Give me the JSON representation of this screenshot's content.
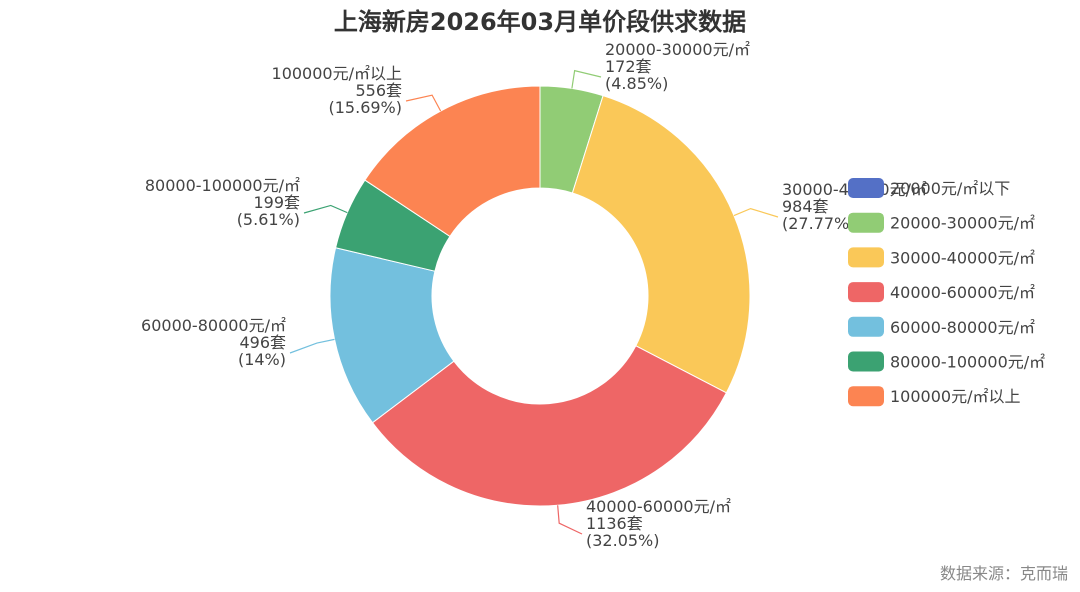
{
  "chart_data": {
    "type": "pie",
    "variant": "donut",
    "title": "上海新房2026年03月单价段供求数据",
    "source": "数据来源：克而瑞",
    "legend_position": "right",
    "unit": "套",
    "slices": [
      {
        "name": "20000元/㎡以下",
        "value": 0,
        "pct": "",
        "color": "#5470c6",
        "label_lines": []
      },
      {
        "name": "20000-30000元/㎡",
        "value": 172,
        "pct": "(4.85%)",
        "color": "#91cc75",
        "label_lines": [
          "20000-30000元/㎡",
          "172套",
          "(4.85%)"
        ]
      },
      {
        "name": "30000-40000元/㎡",
        "value": 984,
        "pct": "(27.77%)",
        "color": "#fac858",
        "label_lines": [
          "30000-40000元/㎡",
          "984套",
          "(27.77%)"
        ]
      },
      {
        "name": "40000-60000元/㎡",
        "value": 1136,
        "pct": "(32.05%)",
        "color": "#ee6666",
        "label_lines": [
          "40000-60000元/㎡",
          "1136套",
          "(32.05%)"
        ]
      },
      {
        "name": "60000-80000元/㎡",
        "value": 496,
        "pct": "(14%)",
        "color": "#73c0de",
        "label_lines": [
          "60000-80000元/㎡",
          "496套",
          "(14%)"
        ]
      },
      {
        "name": "80000-100000元/㎡",
        "value": 199,
        "pct": "(5.61%)",
        "color": "#3ba272",
        "label_lines": [
          "80000-100000元/㎡",
          "199套",
          "(5.61%)"
        ]
      },
      {
        "name": "100000元/㎡以上",
        "value": 556,
        "pct": "(15.69%)",
        "color": "#fc8452",
        "label_lines": [
          "100000元/㎡以上",
          "556套",
          "(15.69%)"
        ]
      }
    ]
  }
}
